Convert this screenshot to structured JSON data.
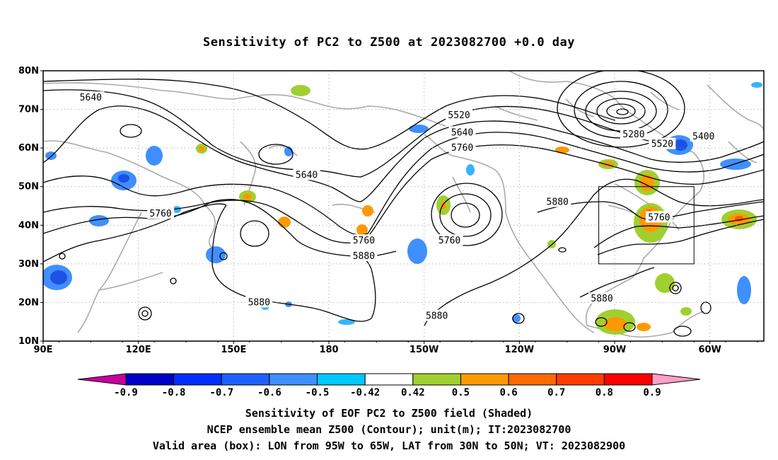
{
  "title": "Sensitivity of PC2 to Z500 at 2023082700 +0.0 day",
  "map": {
    "lat_labels": [
      "80N",
      "70N",
      "60N",
      "50N",
      "40N",
      "30N",
      "20N",
      "10N"
    ],
    "lon_labels": [
      "90E",
      "120E",
      "150E",
      "180",
      "150W",
      "120W",
      "90W",
      "60W"
    ],
    "lat_values": [
      80,
      70,
      60,
      50,
      40,
      30,
      20,
      10
    ],
    "lon_values": [
      90,
      120,
      150,
      180,
      210,
      240,
      270,
      300
    ],
    "lon_range": [
      90,
      317
    ],
    "lat_range": [
      10,
      80
    ],
    "grid": "dotted",
    "valid_box": {
      "lon": [
        265,
        295
      ],
      "lat": [
        30,
        50
      ]
    },
    "contour_labels": [
      {
        "text": "5640",
        "lon": 105,
        "lat": 73
      },
      {
        "text": "5640",
        "lon": 173,
        "lat": 53
      },
      {
        "text": "5760",
        "lon": 127,
        "lat": 43
      },
      {
        "text": "5760",
        "lon": 191,
        "lat": 36
      },
      {
        "text": "5880",
        "lon": 191,
        "lat": 32
      },
      {
        "text": "5880",
        "lon": 158,
        "lat": 20
      },
      {
        "text": "5520",
        "lon": 221,
        "lat": 68.5
      },
      {
        "text": "5640",
        "lon": 222,
        "lat": 64
      },
      {
        "text": "5760",
        "lon": 222,
        "lat": 60
      },
      {
        "text": "5760",
        "lon": 218,
        "lat": 36
      },
      {
        "text": "5880",
        "lon": 252,
        "lat": 46
      },
      {
        "text": "5880",
        "lon": 214,
        "lat": 16.5
      },
      {
        "text": "5280",
        "lon": 276,
        "lat": 63.5
      },
      {
        "text": "5520",
        "lon": 285,
        "lat": 61
      },
      {
        "text": "5400",
        "lon": 298,
        "lat": 63
      },
      {
        "text": "5760",
        "lon": 284,
        "lat": 42
      },
      {
        "text": "5880",
        "lon": 266,
        "lat": 21
      }
    ]
  },
  "colorbar": {
    "labels": [
      "-0.9",
      "-0.8",
      "-0.7",
      "-0.6",
      "-0.5",
      "-0.42",
      "0.42",
      "0.5",
      "0.6",
      "0.7",
      "0.8",
      "0.9"
    ],
    "colors": [
      "#0000c8",
      "#0030ff",
      "#1e60ff",
      "#3f8fff",
      "#00c8ff",
      "#ffffff",
      "#a0d030",
      "#ff9900",
      "#ff6a00",
      "#ff3c00",
      "#ff0000"
    ],
    "end_low": "#c8009c",
    "end_high": "#ff9ec8"
  },
  "captions": {
    "line1": "Sensitivity of EOF PC2 to Z500 field (Shaded)",
    "line2": "NCEP ensemble mean Z500 (Contour); unit(m); IT:2023082700",
    "line3": "Valid area (box): LON from 95W to 65W, LAT from 30N to 50N; VT: 2023082900"
  },
  "shade_colors": {
    "blue_dark": "#1e50e6",
    "blue_mid": "#3f8fff",
    "blue_light": "#32b4ff",
    "green": "#a0d030",
    "orange": "#ff9900",
    "red": "#ff5a00"
  }
}
